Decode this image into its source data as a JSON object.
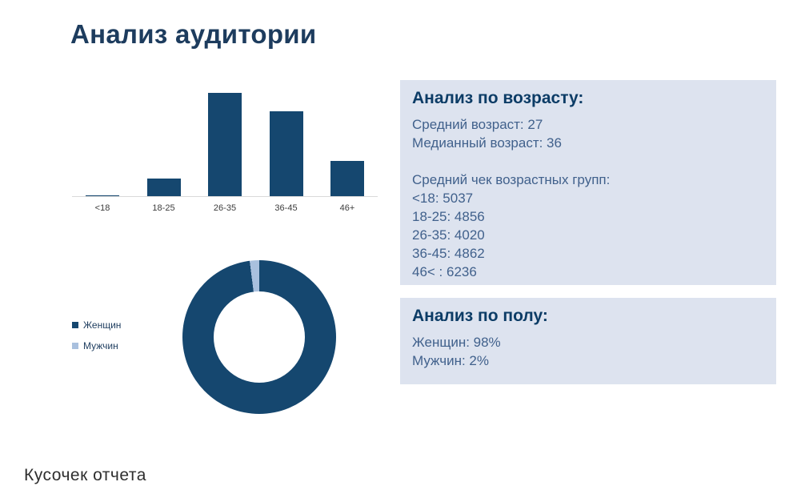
{
  "page": {
    "title": "Анализ аудитории",
    "footer": "Кусочек отчета"
  },
  "colors": {
    "primary": "#15476f",
    "secondary": "#a9c0de",
    "panel_bg": "#dde3ef",
    "heading_text": "#0c3c66",
    "body_text": "#41618c"
  },
  "chart_data": [
    {
      "type": "bar",
      "title": "",
      "categories": [
        "<18",
        "18-25",
        "26-35",
        "36-45",
        "46+"
      ],
      "values": [
        1,
        17,
        100,
        82,
        34
      ],
      "xlabel": "",
      "ylabel": "",
      "ylim": [
        0,
        100
      ],
      "grid": false,
      "bar_color": "#15476f",
      "note": "values estimated from bar heights; no y-axis labels shown"
    },
    {
      "type": "pie",
      "donut": true,
      "labels": [
        "Женщин",
        "Мужчин"
      ],
      "values": [
        98,
        2
      ],
      "colors": [
        "#15476f",
        "#a9c0de"
      ],
      "legend_position": "left",
      "title": ""
    }
  ],
  "age_panel": {
    "title": "Анализ по возрасту:",
    "lines": [
      "Средний возраст: 27",
      "Медианный возраст: 36",
      "",
      "Средний чек возрастных групп:",
      "<18: 5037",
      "18-25: 4856",
      "26-35: 4020",
      "36-45: 4862",
      "46< : 6236"
    ]
  },
  "gender_panel": {
    "title": "Анализ по полу:",
    "lines": [
      "Женщин: 98%",
      "Мужчин: 2%"
    ]
  }
}
